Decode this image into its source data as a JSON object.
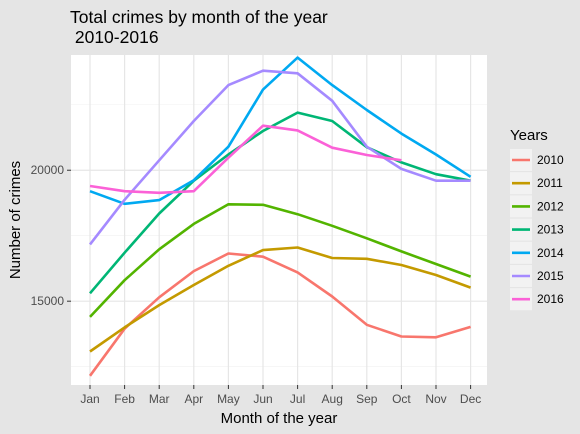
{
  "chart_data": {
    "type": "line",
    "title_lines": [
      "Total crimes by month of the year",
      " 2010-2016"
    ],
    "xlabel": "Month of the year",
    "ylabel": "Number of crimes",
    "categories": [
      "Jan",
      "Feb",
      "Mar",
      "Apr",
      "May",
      "Jun",
      "Jul",
      "Aug",
      "Sep",
      "Oct",
      "Nov",
      "Dec"
    ],
    "ylim": [
      11800,
      24400
    ],
    "yticks": [
      15000,
      20000
    ],
    "ytick_labels": [
      "15000",
      "20000"
    ],
    "grid": true,
    "legend_title": "Years",
    "legend_position": "right",
    "series": [
      {
        "name": "2010",
        "color": "#F8766D",
        "values": [
          12150,
          13950,
          15150,
          16150,
          16820,
          16700,
          16100,
          15180,
          14100,
          13650,
          13620,
          14020
        ]
      },
      {
        "name": "2011",
        "color": "#C49A00",
        "values": [
          13080,
          14000,
          14850,
          15620,
          16350,
          16950,
          17050,
          16650,
          16620,
          16380,
          16000,
          15520
        ]
      },
      {
        "name": "2012",
        "color": "#53B400",
        "values": [
          14400,
          15800,
          16980,
          17950,
          18700,
          18680,
          18320,
          17880,
          17400,
          16900,
          16420,
          15940
        ]
      },
      {
        "name": "2013",
        "color": "#00B675",
        "values": [
          15300,
          16850,
          18350,
          19600,
          20600,
          21500,
          22200,
          21880,
          20880,
          20300,
          19850,
          19600
        ]
      },
      {
        "name": "2014",
        "color": "#00A9F1",
        "values": [
          19200,
          18720,
          18860,
          19620,
          20900,
          23080,
          24300,
          23250,
          22300,
          21400,
          20600,
          19750
        ]
      },
      {
        "name": "2015",
        "color": "#A58AFF",
        "values": [
          17170,
          18870,
          20380,
          21880,
          23250,
          23800,
          23700,
          22650,
          20900,
          20050,
          19600,
          19600
        ]
      },
      {
        "name": "2016",
        "color": "#FB61D7",
        "values": [
          19400,
          19200,
          19140,
          19200,
          20480,
          21700,
          21520,
          20860,
          20580,
          20380,
          null,
          null
        ]
      }
    ]
  }
}
